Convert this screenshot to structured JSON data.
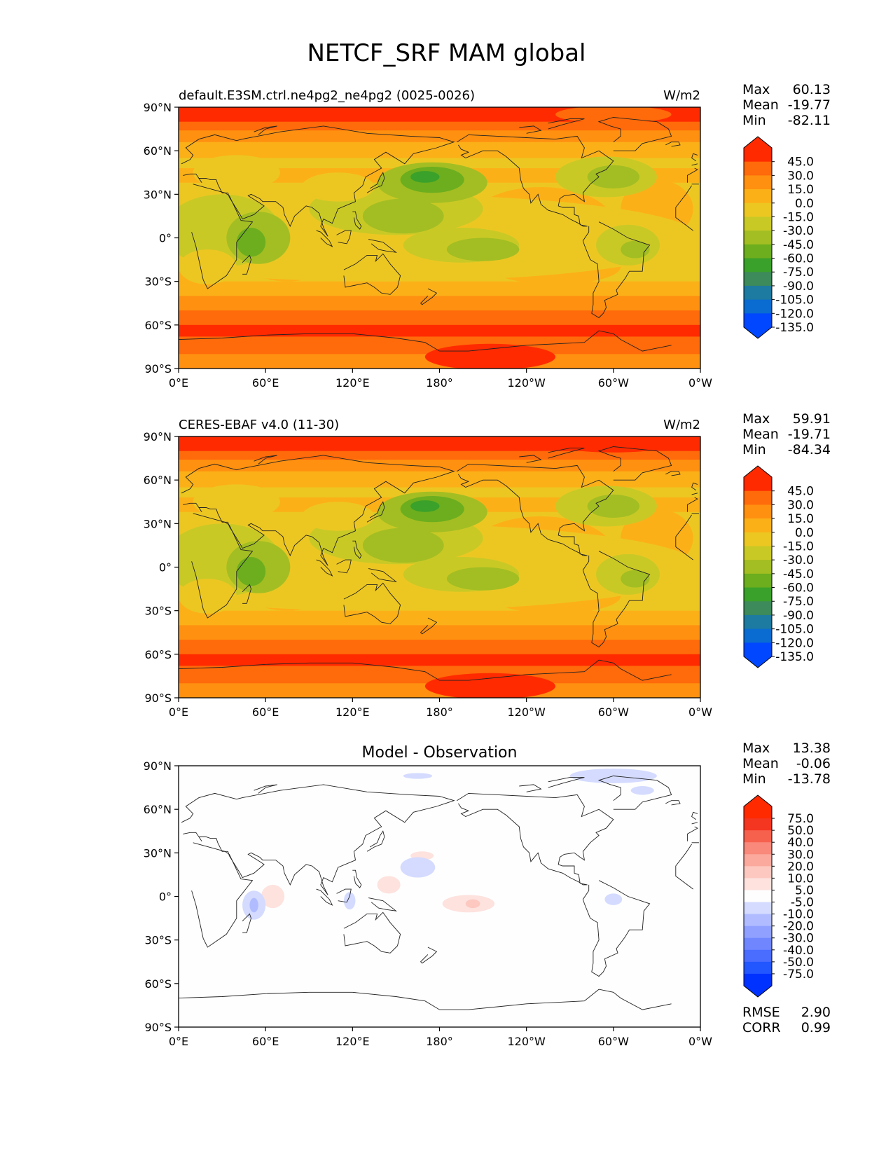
{
  "title": "NETCF_SRF MAM global",
  "colors": {
    "ref": [
      "#0047ff",
      "#0a6cd0",
      "#1d7aa0",
      "#3d8a5a",
      "#3aa12a",
      "#6cae1e",
      "#a3be22",
      "#c9c926",
      "#ecc722",
      "#fcb018",
      "#ff9010",
      "#ff6a0a",
      "#ff2a00"
    ],
    "diff": [
      "#0032ff",
      "#2256ff",
      "#4a6cff",
      "#6f86ff",
      "#8fa0ff",
      "#b0bcff",
      "#d4dbff",
      "#fefefe",
      "#fde2de",
      "#fcc8c0",
      "#fba99d",
      "#f9897a",
      "#f6614e",
      "#f43520",
      "#ff2a00"
    ]
  },
  "panels": [
    {
      "id": "test",
      "title_left": "default.E3SM.ctrl.ne4pg2_ne4pg2 (0025-0026)",
      "units": "W/m2",
      "stats": {
        "max_label": "Max",
        "max": "60.13",
        "mean_label": "Mean",
        "mean": "-19.77",
        "min_label": "Min",
        "min": "-82.11"
      }
    },
    {
      "id": "ref",
      "title_left": "CERES-EBAF v4.0 (11-30)",
      "units": "W/m2",
      "stats": {
        "max_label": "Max",
        "max": "59.91",
        "mean_label": "Mean",
        "mean": "-19.71",
        "min_label": "Min",
        "min": "-84.34"
      }
    },
    {
      "id": "diff",
      "title_center": "Model - Observation",
      "stats": {
        "max_label": "Max",
        "max": "13.38",
        "mean_label": "Mean",
        "mean": "-0.06",
        "min_label": "Min",
        "min": "-13.78"
      },
      "rmse_label": "RMSE",
      "rmse": "2.90",
      "corr_label": "CORR",
      "corr": "0.99"
    }
  ],
  "lat_ticks": [
    "90°N",
    "60°N",
    "30°N",
    "0°",
    "30°S",
    "60°S",
    "90°S"
  ],
  "lon_ticks": [
    "0°E",
    "60°E",
    "120°E",
    "180°",
    "120°W",
    "60°W",
    "0°W"
  ],
  "colorbar_ref": {
    "labels": [
      "45.0",
      "30.0",
      "15.0",
      "0.0",
      "-15.0",
      "-30.0",
      "-45.0",
      "-60.0",
      "-75.0",
      "-90.0",
      "-105.0",
      "-120.0",
      "-135.0"
    ]
  },
  "colorbar_diff": {
    "labels": [
      "75.0",
      "50.0",
      "40.0",
      "30.0",
      "20.0",
      "10.0",
      "5.0",
      "-5.0",
      "-10.0",
      "-20.0",
      "-30.0",
      "-40.0",
      "-50.0",
      "-75.0"
    ]
  }
}
